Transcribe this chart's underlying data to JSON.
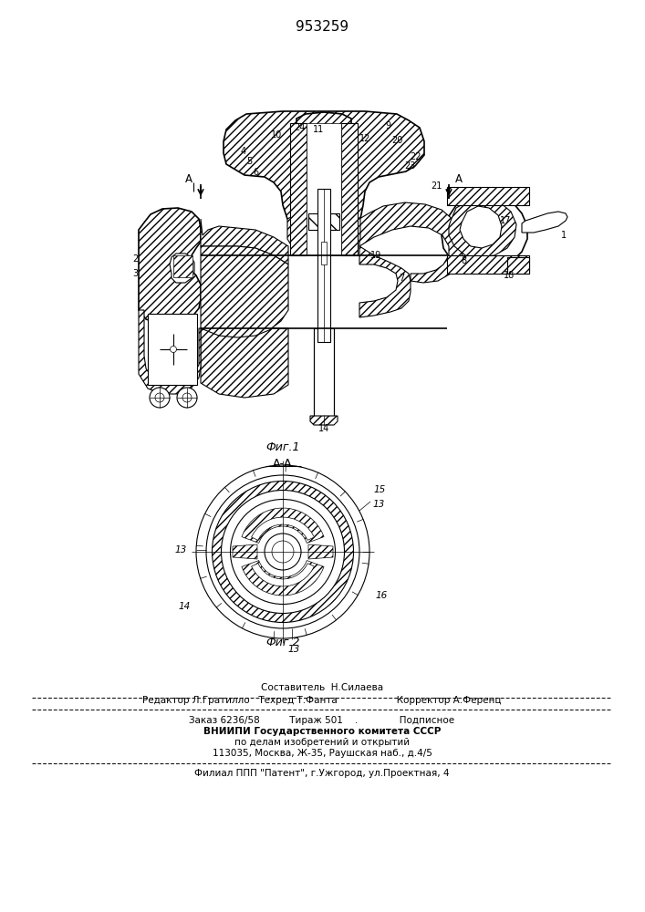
{
  "patent_number": "953259",
  "fig1_caption": "Фиг.1",
  "fig2_caption": "Фиг.2",
  "section_label": "А-А",
  "A_left": "А",
  "A_right": "А",
  "footer_sestavitel": "Составитель  Н.Силаева",
  "footer_editor_line": "Редактор Л.Гратилло   Техред Т.Фанта                    Корректор А.Ференц",
  "footer_zakaz": "Заказ 6236/58          Тираж 501    .              Подписное",
  "footer_vnipi": "ВНИИПИ Государственного комитета СССР",
  "footer_po_delam": "по делам изобретений и открытий",
  "footer_address": "113035, Москва, Ж-35, Раушская наб., д.4/5",
  "footer_filial": "Филиал ППП \"Патент\", г.Ужгород, ул.Проектная, 4",
  "bg_color": "#ffffff"
}
